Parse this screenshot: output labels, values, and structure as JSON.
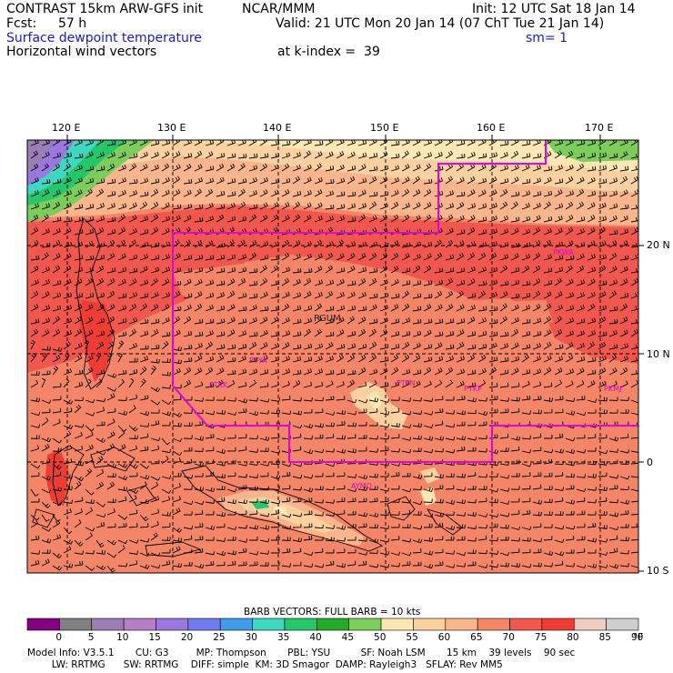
{
  "header": {
    "model_title": "CONTRAST 15km ARW-GFS init",
    "org": "NCAR/MMM",
    "init": "Init: 12 UTC Sat 18 Jan 14",
    "fcst_label": "Fcst:",
    "fcst_hours": "57 h",
    "valid": "Valid: 21 UTC Mon 20 Jan 14 (07 ChT Tue 21 Jan 14)",
    "field_name": "Surface dewpoint temperature",
    "smoothing": "sm= 1",
    "vector_field": "Horizontal wind vectors",
    "k_index": "at k-index =  39"
  },
  "axes": {
    "longitudes": [
      "120 E",
      "130 E",
      "140 E",
      "150 E",
      "160 E",
      "170 E"
    ],
    "latitudes": [
      "20 N",
      "10 N",
      "0",
      "10 S"
    ]
  },
  "stations": [
    "PGUM",
    "PTYA",
    "PTKK",
    "PTPN",
    "PTKP",
    "PKMJ",
    "PKWA",
    "AYMO"
  ],
  "legend": {
    "barb_caption": "BARB VECTORS:  FULL BARB = 10 kts",
    "ticks": [
      "0",
      "5",
      "10",
      "15",
      "20",
      "25",
      "30",
      "35",
      "40",
      "45",
      "50",
      "55",
      "60",
      "65",
      "70",
      "75",
      "80",
      "85",
      "90"
    ],
    "unit": "°F",
    "colors": [
      "#800080",
      "#808080",
      "#9b7fb4",
      "#b47fc6",
      "#9a78e0",
      "#6f7cee",
      "#3f9de8",
      "#3cd8c0",
      "#23c86a",
      "#22aa28",
      "#7ccd5a",
      "#fde8b4",
      "#fcd1a0",
      "#f9b58b",
      "#f58567",
      "#f1574d",
      "#ef3d36",
      "#eecebe",
      "#cfcfcf"
    ]
  },
  "model_info": {
    "line1": "Model Info: V3.5.1       CU: G3         MP: Thompson       PBL: YSU          SF: Noah LSM       15 km    39 levels    90 sec",
    "line2": "        LW: RRTMG      SW: RRTMG    DIFF: simple  KM: 3D Smagor  DAMP: Rayleigh3   SFLAY: Rev MM5"
  }
}
